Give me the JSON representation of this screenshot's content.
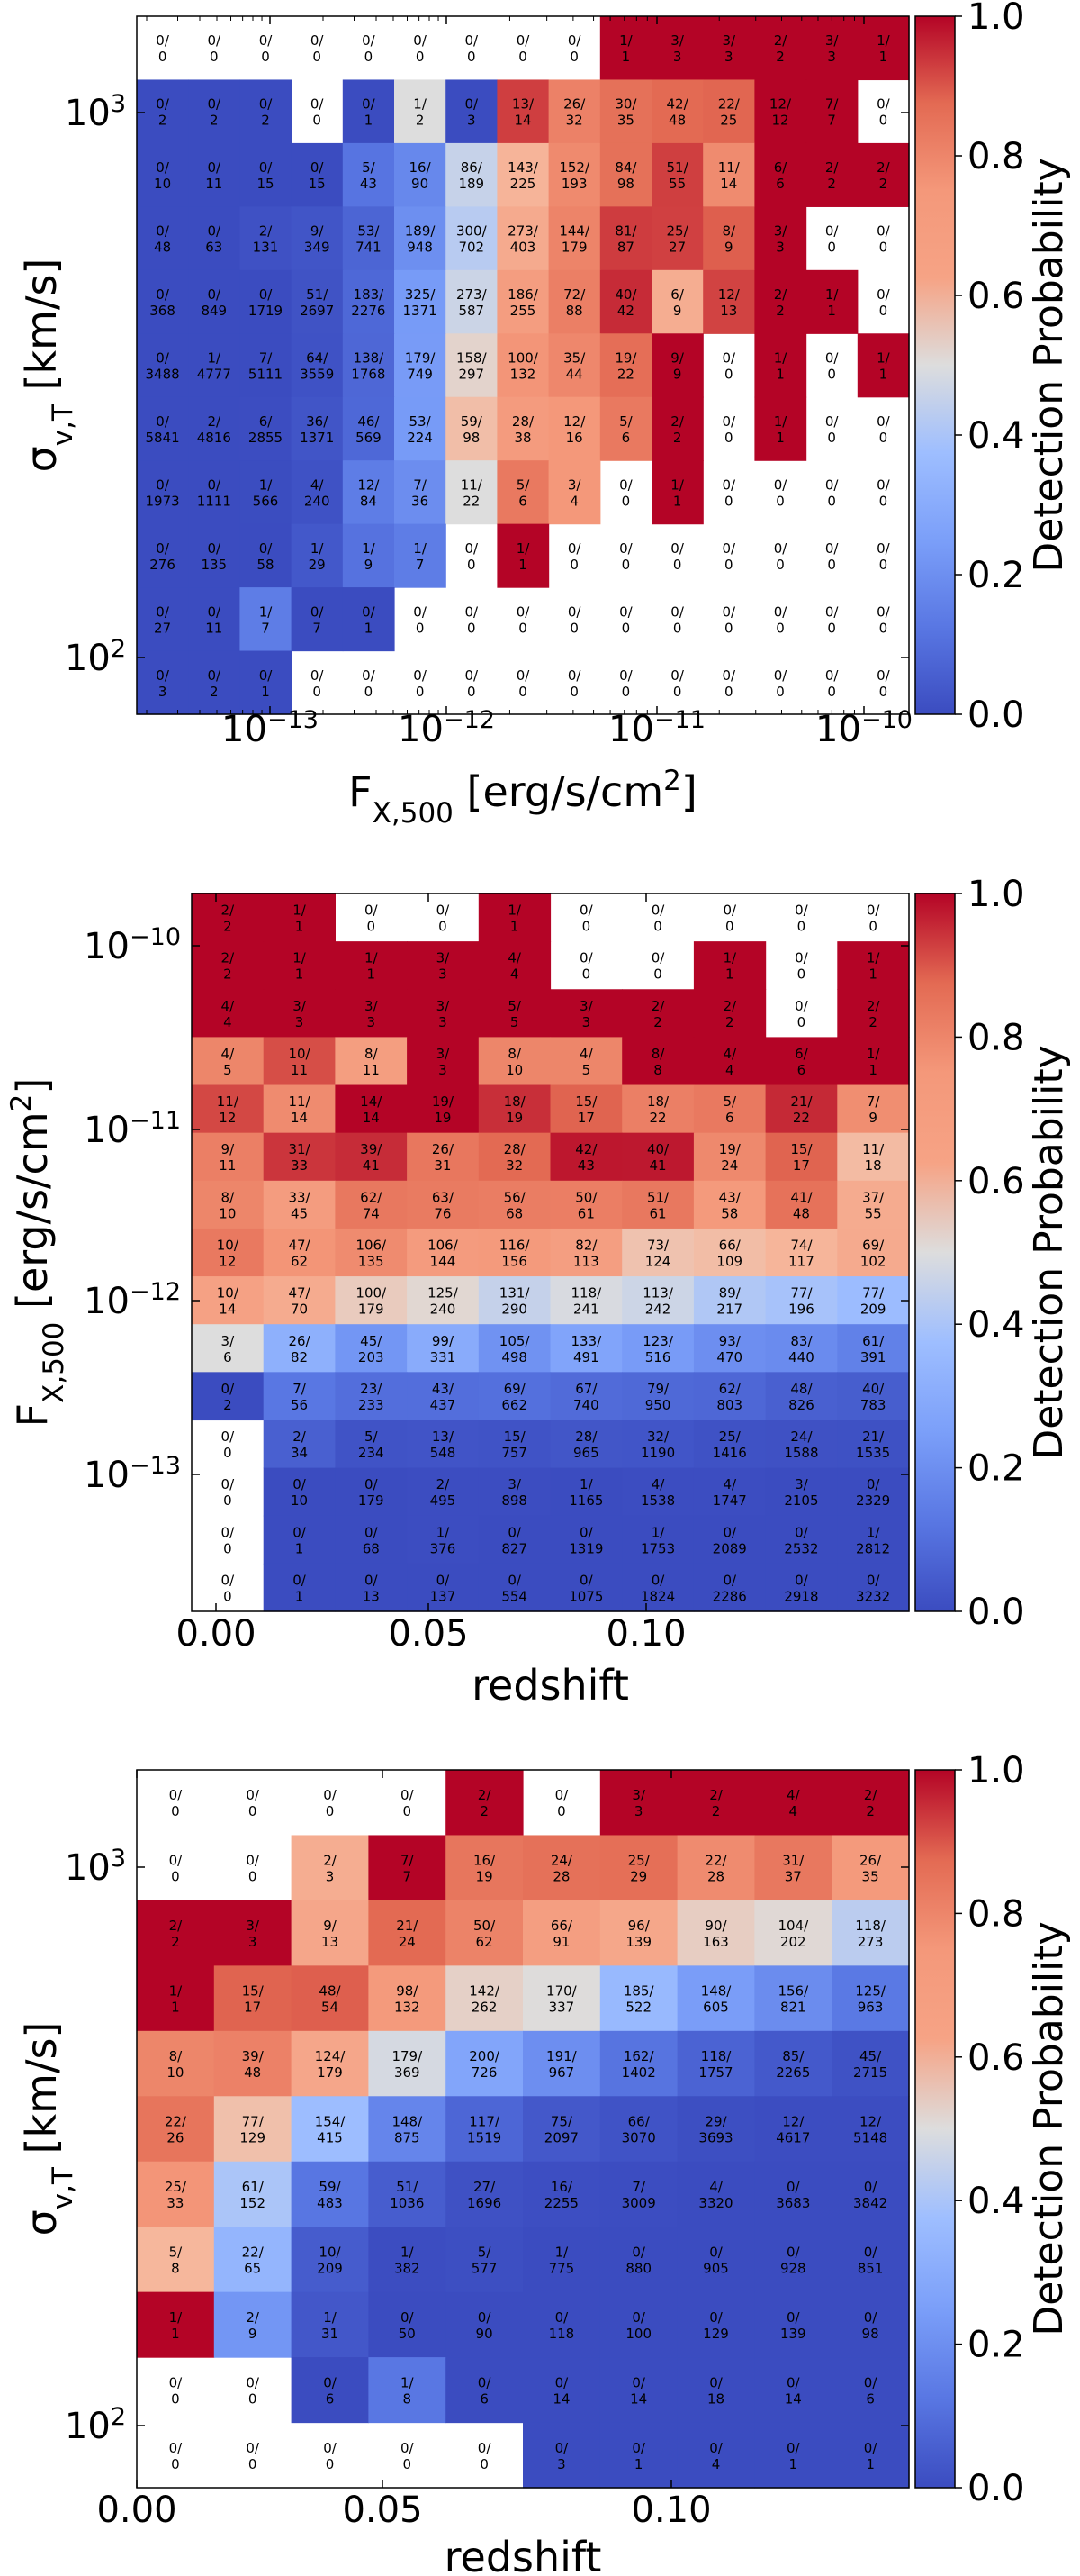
{
  "colorbar": {
    "label": "Detection Probability",
    "ticks": [
      "0.0",
      "0.2",
      "0.4",
      "0.6",
      "0.8",
      "1.0"
    ]
  },
  "chart_data": [
    {
      "type": "heatmap",
      "xlabel": "F_{X,500} [erg/s/cm^2]",
      "ylabel": "σ_{v,T} [km/s]",
      "x_tick_labels": [
        "10^{-13}",
        "10^{-12}",
        "10^{-11}",
        "10^{-10}"
      ],
      "y_tick_labels": [
        "10^3",
        "10^2"
      ],
      "x_scale": "log",
      "y_scale": "log",
      "colormap": "coolwarm",
      "color_range": [
        0,
        1
      ],
      "rows": [
        [
          "0/0",
          "0/0",
          "0/0",
          "0/0",
          "0/0",
          "0/0",
          "0/0",
          "0/0",
          "0/0",
          "1/1",
          "3/3",
          "3/3",
          "2/2",
          "3/3",
          "1/1"
        ],
        [
          "0/2",
          "0/2",
          "0/2",
          "0/0",
          "0/1",
          "1/2",
          "0/3",
          "13/14",
          "26/32",
          "30/35",
          "42/48",
          "22/25",
          "12/12",
          "7/7",
          "0/0"
        ],
        [
          "0/10",
          "0/11",
          "0/15",
          "0/15",
          "5/43",
          "16/90",
          "86/189",
          "143/225",
          "152/193",
          "84/98",
          "51/55",
          "11/14",
          "6/6",
          "2/2",
          "2/2"
        ],
        [
          "0/48",
          "0/63",
          "2/131",
          "9/349",
          "53/741",
          "189/948",
          "300/702",
          "273/403",
          "144/179",
          "81/87",
          "25/27",
          "8/9",
          "3/3",
          "0/0",
          "0/0"
        ],
        [
          "0/368",
          "0/849",
          "0/1719",
          "51/2697",
          "183/2276",
          "325/1371",
          "273/587",
          "186/255",
          "72/88",
          "40/42",
          "6/9",
          "12/13",
          "2/2",
          "1/1",
          "0/0"
        ],
        [
          "0/3488",
          "1/4777",
          "7/5111",
          "64/3559",
          "138/1768",
          "179/749",
          "158/297",
          "100/132",
          "35/44",
          "19/22",
          "9/9",
          "0/0",
          "1/1",
          "0/0",
          "1/1"
        ],
        [
          "0/5841",
          "2/4816",
          "6/2855",
          "36/1371",
          "46/569",
          "53/224",
          "59/98",
          "28/38",
          "12/16",
          "5/6",
          "2/2",
          "0/0",
          "1/1",
          "0/0",
          "0/0"
        ],
        [
          "0/1973",
          "0/1111",
          "1/566",
          "4/240",
          "12/84",
          "7/36",
          "11/22",
          "5/6",
          "3/4",
          "0/0",
          "1/1",
          "0/0",
          "0/0",
          "0/0",
          "0/0"
        ],
        [
          "0/276",
          "0/135",
          "0/58",
          "1/29",
          "1/9",
          "1/7",
          "0/0",
          "1/1",
          "0/0",
          "0/0",
          "0/0",
          "0/0",
          "0/0",
          "0/0",
          "0/0"
        ],
        [
          "0/27",
          "0/11",
          "1/7",
          "0/7",
          "0/1",
          "0/0",
          "0/0",
          "0/0",
          "0/0",
          "0/0",
          "0/0",
          "0/0",
          "0/0",
          "0/0",
          "0/0"
        ],
        [
          "0/3",
          "0/2",
          "0/1",
          "0/0",
          "0/0",
          "0/0",
          "0/0",
          "0/0",
          "0/0",
          "0/0",
          "0/0",
          "0/0",
          "0/0",
          "0/0",
          "0/0"
        ]
      ]
    },
    {
      "type": "heatmap",
      "xlabel": "redshift",
      "ylabel": "F_{X,500} [erg/s/cm^2]",
      "x_tick_labels": [
        "0.00",
        "0.05",
        "0.10"
      ],
      "y_tick_labels": [
        "10^{-10}",
        "10^{-11}",
        "10^{-12}",
        "10^{-13}"
      ],
      "x_scale": "linear",
      "y_scale": "log",
      "colormap": "coolwarm",
      "color_range": [
        0,
        1
      ],
      "rows": [
        [
          "2/2",
          "1/1",
          "0/0",
          "0/0",
          "1/1",
          "0/0",
          "0/0",
          "0/0",
          "0/0",
          "0/0"
        ],
        [
          "2/2",
          "1/1",
          "1/1",
          "3/3",
          "4/4",
          "0/0",
          "0/0",
          "1/1",
          "0/0",
          "1/1"
        ],
        [
          "4/4",
          "3/3",
          "3/3",
          "3/3",
          "5/5",
          "3/3",
          "2/2",
          "2/2",
          "0/0",
          "2/2"
        ],
        [
          "4/5",
          "10/11",
          "8/11",
          "3/3",
          "8/10",
          "4/5",
          "8/8",
          "4/4",
          "6/6",
          "1/1"
        ],
        [
          "11/12",
          "11/14",
          "14/14",
          "19/19",
          "18/19",
          "15/17",
          "18/22",
          "5/6",
          "21/22",
          "7/9"
        ],
        [
          "9/11",
          "31/33",
          "39/41",
          "26/31",
          "28/32",
          "42/43",
          "40/41",
          "19/24",
          "15/17",
          "11/18"
        ],
        [
          "8/10",
          "33/45",
          "62/74",
          "63/76",
          "56/68",
          "50/61",
          "51/61",
          "43/58",
          "41/48",
          "37/55"
        ],
        [
          "10/12",
          "47/62",
          "106/135",
          "106/144",
          "116/156",
          "82/113",
          "73/124",
          "66/109",
          "74/117",
          "69/102"
        ],
        [
          "10/14",
          "47/70",
          "100/179",
          "125/240",
          "131/290",
          "118/241",
          "113/242",
          "89/217",
          "77/196",
          "77/209"
        ],
        [
          "3/6",
          "26/82",
          "45/203",
          "99/331",
          "105/498",
          "133/491",
          "123/516",
          "93/470",
          "83/440",
          "61/391"
        ],
        [
          "0/2",
          "7/56",
          "23/233",
          "43/437",
          "69/662",
          "67/740",
          "79/950",
          "62/803",
          "48/826",
          "40/783"
        ],
        [
          "0/0",
          "2/34",
          "5/234",
          "13/548",
          "15/757",
          "28/965",
          "32/1190",
          "25/1416",
          "24/1588",
          "21/1535"
        ],
        [
          "0/0",
          "0/10",
          "0/179",
          "2/495",
          "3/898",
          "1/1165",
          "4/1538",
          "4/1747",
          "3/2105",
          "0/2329"
        ],
        [
          "0/0",
          "0/1",
          "0/68",
          "1/376",
          "0/827",
          "0/1319",
          "1/1753",
          "0/2089",
          "0/2532",
          "1/2812"
        ],
        [
          "0/0",
          "0/1",
          "0/13",
          "0/137",
          "0/554",
          "0/1075",
          "0/1824",
          "0/2286",
          "0/2918",
          "0/3232"
        ]
      ]
    },
    {
      "type": "heatmap",
      "xlabel": "redshift",
      "ylabel": "σ_{v,T} [km/s]",
      "x_tick_labels": [
        "0.00",
        "0.05",
        "0.10"
      ],
      "y_tick_labels": [
        "10^3",
        "10^2"
      ],
      "x_scale": "linear",
      "y_scale": "log",
      "colormap": "coolwarm",
      "color_range": [
        0,
        1
      ],
      "rows": [
        [
          "0/0",
          "0/0",
          "0/0",
          "0/0",
          "2/2",
          "0/0",
          "3/3",
          "2/2",
          "4/4",
          "2/2"
        ],
        [
          "0/0",
          "0/0",
          "2/3",
          "7/7",
          "16/19",
          "24/28",
          "25/29",
          "22/28",
          "31/37",
          "26/35"
        ],
        [
          "2/2",
          "3/3",
          "9/13",
          "21/24",
          "50/62",
          "66/91",
          "96/139",
          "90/163",
          "104/202",
          "118/273"
        ],
        [
          "1/1",
          "15/17",
          "48/54",
          "98/132",
          "142/262",
          "170/337",
          "185/522",
          "148/605",
          "156/821",
          "125/963"
        ],
        [
          "8/10",
          "39/48",
          "124/179",
          "179/369",
          "200/726",
          "191/967",
          "162/1402",
          "118/1757",
          "85/2265",
          "45/2715"
        ],
        [
          "22/26",
          "77/129",
          "154/415",
          "148/875",
          "117/1519",
          "75/2097",
          "66/3070",
          "29/3693",
          "12/4617",
          "12/5148"
        ],
        [
          "25/33",
          "61/152",
          "59/483",
          "51/1036",
          "27/1696",
          "16/2255",
          "7/3009",
          "4/3320",
          "0/3683",
          "0/3842"
        ],
        [
          "5/8",
          "22/65",
          "10/209",
          "1/382",
          "5/577",
          "1/775",
          "0/880",
          "0/905",
          "0/928",
          "0/851"
        ],
        [
          "1/1",
          "2/9",
          "1/31",
          "0/50",
          "0/90",
          "0/118",
          "0/100",
          "0/129",
          "0/139",
          "0/98"
        ],
        [
          "0/0",
          "0/0",
          "0/6",
          "1/8",
          "0/6",
          "0/14",
          "0/14",
          "0/18",
          "0/14",
          "0/6"
        ],
        [
          "0/0",
          "0/0",
          "0/0",
          "0/0",
          "0/0",
          "0/3",
          "0/1",
          "0/4",
          "0/1",
          "0/1"
        ]
      ]
    }
  ]
}
